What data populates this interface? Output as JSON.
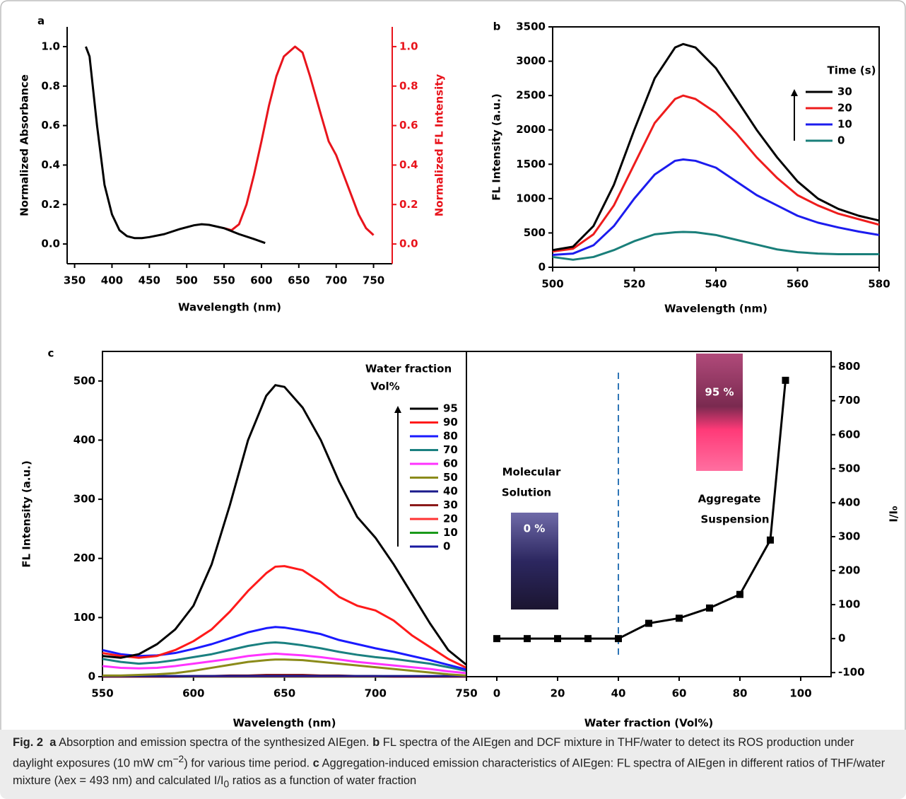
{
  "chart_data": [
    {
      "type": "line",
      "panel": "a",
      "xlabel": "Wavelength (nm)",
      "ylabel": "Normalized Absorbance",
      "y2label": "Normalized FL Intensity",
      "xlim": [
        340,
        775
      ],
      "xticks": [
        350,
        400,
        450,
        500,
        550,
        600,
        650,
        700,
        750
      ],
      "ylim": [
        -0.1,
        1.1
      ],
      "yticks": [
        {
          "value": 0,
          "label": "0.0"
        },
        0.2,
        0.4,
        0.6,
        0.8,
        {
          "value": 1,
          "label": "1.0"
        }
      ],
      "y2lim": [
        -0.1,
        1.1
      ],
      "y2ticks": [
        {
          "value": 0,
          "label": "0.0"
        },
        0.2,
        0.4,
        0.6,
        0.8,
        {
          "value": 1,
          "label": "1.0"
        }
      ],
      "y2color": "#e8141c",
      "series": [
        {
          "color": "#000000",
          "x": [
            365,
            370,
            380,
            390,
            400,
            410,
            420,
            430,
            440,
            450,
            470,
            490,
            510,
            520,
            530,
            550,
            570,
            590,
            605
          ],
          "values": [
            1.0,
            0.95,
            0.6,
            0.3,
            0.15,
            0.07,
            0.04,
            0.03,
            0.03,
            0.035,
            0.05,
            0.075,
            0.095,
            0.1,
            0.097,
            0.08,
            0.05,
            0.025,
            0.005
          ]
        },
        {
          "color": "#e8141c",
          "axis": "y2",
          "x": [
            550,
            560,
            570,
            580,
            590,
            600,
            610,
            620,
            630,
            645,
            655,
            665,
            680,
            690,
            700,
            710,
            720,
            730,
            740,
            750
          ],
          "values": [
            0.08,
            0.07,
            0.1,
            0.2,
            0.35,
            0.52,
            0.7,
            0.85,
            0.95,
            1.0,
            0.97,
            0.85,
            0.65,
            0.52,
            0.45,
            0.35,
            0.25,
            0.15,
            0.08,
            0.045
          ]
        }
      ]
    },
    {
      "type": "line",
      "panel": "b",
      "xlabel": "Wavelength (nm)",
      "ylabel": "FL Intensity (a.u.)",
      "xlim": [
        500,
        580
      ],
      "xticks": [
        500,
        520,
        540,
        560,
        580
      ],
      "ylim": [
        0,
        3500
      ],
      "yticks": [
        0,
        500,
        1000,
        1500,
        2000,
        2500,
        3000,
        3500
      ],
      "legend_title": [
        "Time (s)"
      ],
      "x": [
        500,
        505,
        510,
        515,
        520,
        525,
        530,
        532,
        535,
        540,
        545,
        550,
        555,
        560,
        565,
        570,
        575,
        580
      ],
      "series": [
        {
          "name": "30",
          "color": "#000000",
          "values": [
            250,
            300,
            600,
            1200,
            2000,
            2750,
            3200,
            3250,
            3200,
            2900,
            2450,
            2000,
            1600,
            1250,
            1000,
            850,
            750,
            680
          ]
        },
        {
          "name": "20",
          "color": "#ee1c1c",
          "values": [
            230,
            270,
            480,
            900,
            1500,
            2100,
            2450,
            2500,
            2450,
            2250,
            1950,
            1600,
            1300,
            1050,
            900,
            780,
            700,
            620
          ]
        },
        {
          "name": "10",
          "color": "#1c1cee",
          "values": [
            180,
            200,
            320,
            600,
            1000,
            1350,
            1550,
            1570,
            1550,
            1450,
            1250,
            1050,
            900,
            750,
            650,
            580,
            520,
            470
          ]
        },
        {
          "name": "0",
          "color": "#1a7f7a",
          "values": [
            150,
            110,
            150,
            250,
            380,
            480,
            510,
            515,
            510,
            470,
            400,
            330,
            260,
            220,
            200,
            190,
            190,
            190
          ]
        }
      ]
    },
    {
      "type": "line",
      "panel": "c",
      "xlabel": "Wavelength (nm)",
      "ylabel": "FL Intensity (a.u.)",
      "xlim": [
        550,
        750
      ],
      "xticks": [
        550,
        600,
        650,
        700,
        750
      ],
      "ylim": [
        0,
        550
      ],
      "yticks": [
        0,
        100,
        200,
        300,
        400,
        500
      ],
      "legend_title": [
        "Water fraction",
        "Vol%"
      ],
      "x": [
        550,
        560,
        570,
        580,
        590,
        600,
        610,
        620,
        630,
        640,
        645,
        650,
        660,
        670,
        680,
        690,
        700,
        710,
        720,
        730,
        740,
        750
      ],
      "series": [
        {
          "name": "95",
          "color": "#000000",
          "values": [
            35,
            32,
            38,
            55,
            80,
            120,
            190,
            290,
            400,
            475,
            493,
            490,
            455,
            400,
            330,
            270,
            235,
            190,
            140,
            90,
            45,
            20
          ]
        },
        {
          "name": "90",
          "color": "#ff1a1a",
          "values": [
            40,
            35,
            32,
            35,
            45,
            60,
            80,
            110,
            145,
            175,
            186,
            187,
            180,
            160,
            135,
            120,
            112,
            95,
            70,
            50,
            30,
            15
          ]
        },
        {
          "name": "80",
          "color": "#1a1aff",
          "values": [
            45,
            38,
            35,
            36,
            40,
            47,
            55,
            65,
            75,
            82,
            84,
            83,
            78,
            72,
            62,
            55,
            48,
            42,
            35,
            28,
            20,
            12
          ]
        },
        {
          "name": "70",
          "color": "#1a8080",
          "values": [
            30,
            25,
            22,
            24,
            28,
            33,
            38,
            45,
            52,
            57,
            58,
            57,
            53,
            48,
            42,
            37,
            33,
            30,
            26,
            22,
            16,
            10
          ]
        },
        {
          "name": "60",
          "color": "#ff33ff",
          "values": [
            18,
            15,
            14,
            15,
            18,
            22,
            26,
            30,
            35,
            38,
            39,
            38,
            36,
            33,
            29,
            25,
            22,
            19,
            16,
            13,
            9,
            6
          ]
        },
        {
          "name": "50",
          "color": "#8b8b1a",
          "values": [
            2,
            2,
            3,
            4,
            6,
            10,
            15,
            20,
            25,
            28,
            29,
            29,
            28,
            25,
            22,
            19,
            16,
            13,
            10,
            7,
            4,
            2
          ]
        },
        {
          "name": "40",
          "color": "#1a1a8b",
          "values": [
            1,
            1,
            1,
            1,
            1,
            1,
            1,
            1,
            1,
            1,
            1,
            1,
            1,
            1,
            1,
            1,
            1,
            1,
            1,
            1,
            1,
            1
          ]
        },
        {
          "name": "30",
          "color": "#8b1a1a",
          "values": [
            0,
            0,
            0,
            0,
            0,
            1,
            1,
            2,
            2,
            3,
            3,
            3,
            3,
            2,
            2,
            1,
            1,
            0,
            0,
            0,
            0,
            0
          ]
        },
        {
          "name": "20",
          "color": "#ff3333",
          "values": [
            0.5,
            0.5,
            0.5,
            0.5,
            0.5,
            0.5,
            0.5,
            0.5,
            0.5,
            0.5,
            0.5,
            0.5,
            0.5,
            0.5,
            0.5,
            0.5,
            0.5,
            0.5,
            0.5,
            0.5,
            0.5,
            0.5
          ]
        },
        {
          "name": "10",
          "color": "#1a9a1a",
          "values": [
            0,
            0,
            0,
            0,
            0,
            0,
            0,
            0,
            0,
            0,
            0,
            0,
            0,
            0,
            0,
            0,
            0,
            0,
            0,
            0,
            0,
            0
          ]
        },
        {
          "name": "0",
          "color": "#1a1aa0",
          "values": [
            0,
            0,
            0,
            0,
            0,
            0,
            0,
            0,
            0,
            0,
            0,
            0,
            0,
            0,
            0,
            0,
            0,
            0,
            0,
            0,
            0,
            0
          ]
        }
      ]
    },
    {
      "type": "line",
      "xlabel": "Water fraction (Vol%)",
      "y2label": "I/I₀",
      "xlim": [
        -10,
        110
      ],
      "xticks": [
        0,
        20,
        40,
        60,
        80,
        100
      ],
      "y2lim": [
        -112,
        845
      ],
      "y2ticks": [
        -100,
        0,
        100,
        200,
        300,
        400,
        500,
        600,
        700,
        800
      ],
      "x": [
        0,
        10,
        20,
        30,
        40,
        50,
        60,
        70,
        80,
        90,
        95
      ],
      "series": [
        {
          "color": "#000000",
          "axis": "y2",
          "marker": "square",
          "values": [
            0,
            0,
            0,
            0,
            0,
            45,
            60,
            90,
            130,
            290,
            760
          ]
        }
      ],
      "vlines": [
        {
          "x": 40,
          "color": "#2e75b6"
        }
      ],
      "annotations": [
        {
          "lines": [
            "Molecular",
            "Solution"
          ]
        },
        {
          "lines": [
            "Aggregate",
            "Suspension"
          ]
        }
      ],
      "photo_labels": [
        "0 %",
        "95 %"
      ]
    }
  ],
  "caption": {
    "label": "Fig. 2",
    "parts": [
      {
        "text": "a",
        "style": "bold"
      },
      {
        "text": " Absorption and emission spectra of the synthesized AIEgen. ",
        "style": "plain"
      },
      {
        "text": "b",
        "style": "bold"
      },
      {
        "text": " FL spectra of the AIEgen and DCF mixture in THF/water to detect its ROS production under daylight exposures (10 mW cm",
        "style": "plain"
      },
      {
        "text": "−2",
        "style": "sup"
      },
      {
        "text": ") for various time period. ",
        "style": "plain"
      },
      {
        "text": "c",
        "style": "bold"
      },
      {
        "text": " Aggregation-induced emission characteristics of AIEgen: FL spectra of AIEgen in different ratios of THF/water mixture (λex = 493 nm) and calculated I/I",
        "style": "plain"
      },
      {
        "text": "0",
        "style": "sub"
      },
      {
        "text": " ratios as a function of water fraction",
        "style": "plain"
      }
    ]
  }
}
